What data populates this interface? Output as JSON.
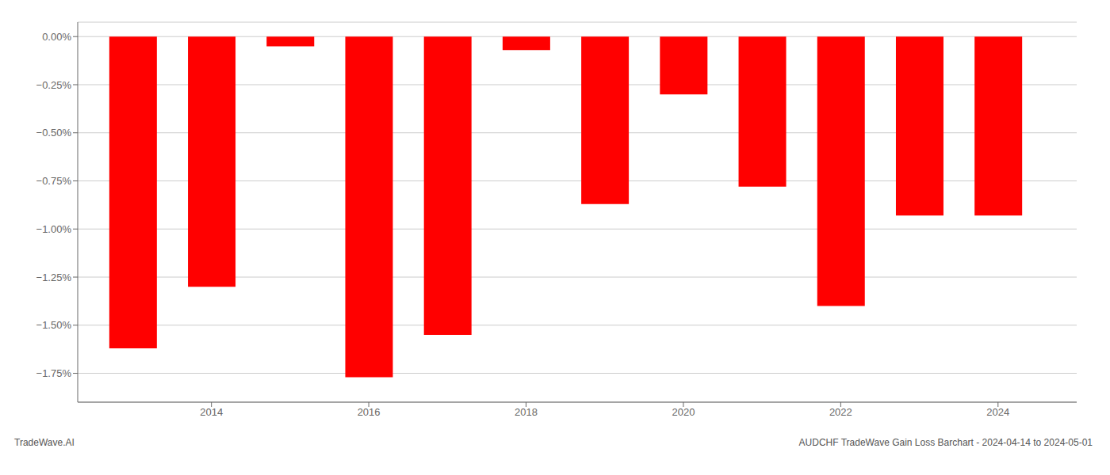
{
  "chart_data": {
    "type": "bar",
    "x": [
      2013,
      2014,
      2015,
      2016,
      2017,
      2018,
      2019,
      2020,
      2021,
      2022,
      2023,
      2024
    ],
    "values": [
      -1.62,
      -1.3,
      -0.05,
      -1.77,
      -1.55,
      -0.07,
      -0.87,
      -0.3,
      -0.78,
      -1.4,
      -0.93,
      -0.93
    ],
    "color": "#ff0000",
    "xlim": [
      2012.3,
      2025
    ],
    "xticks": [
      2014,
      2016,
      2018,
      2020,
      2022,
      2024
    ],
    "ylim": [
      -1.9,
      0.075
    ],
    "yticks": [
      {
        "value": 0.0,
        "label": "0.00%"
      },
      {
        "value": -0.25,
        "label": "−0.25%"
      },
      {
        "value": -0.5,
        "label": "−0.50%"
      },
      {
        "value": -0.75,
        "label": "−0.75%"
      },
      {
        "value": -1.0,
        "label": "−1.00%"
      },
      {
        "value": -1.25,
        "label": "−1.25%"
      },
      {
        "value": -1.5,
        "label": "−1.50%"
      },
      {
        "value": -1.75,
        "label": "−1.75%"
      }
    ],
    "grid": true,
    "annotations": [
      "TradeWave.AI",
      "AUDCHF TradeWave Gain Loss Barchart - 2024-04-14 to 2024-05-01"
    ]
  }
}
